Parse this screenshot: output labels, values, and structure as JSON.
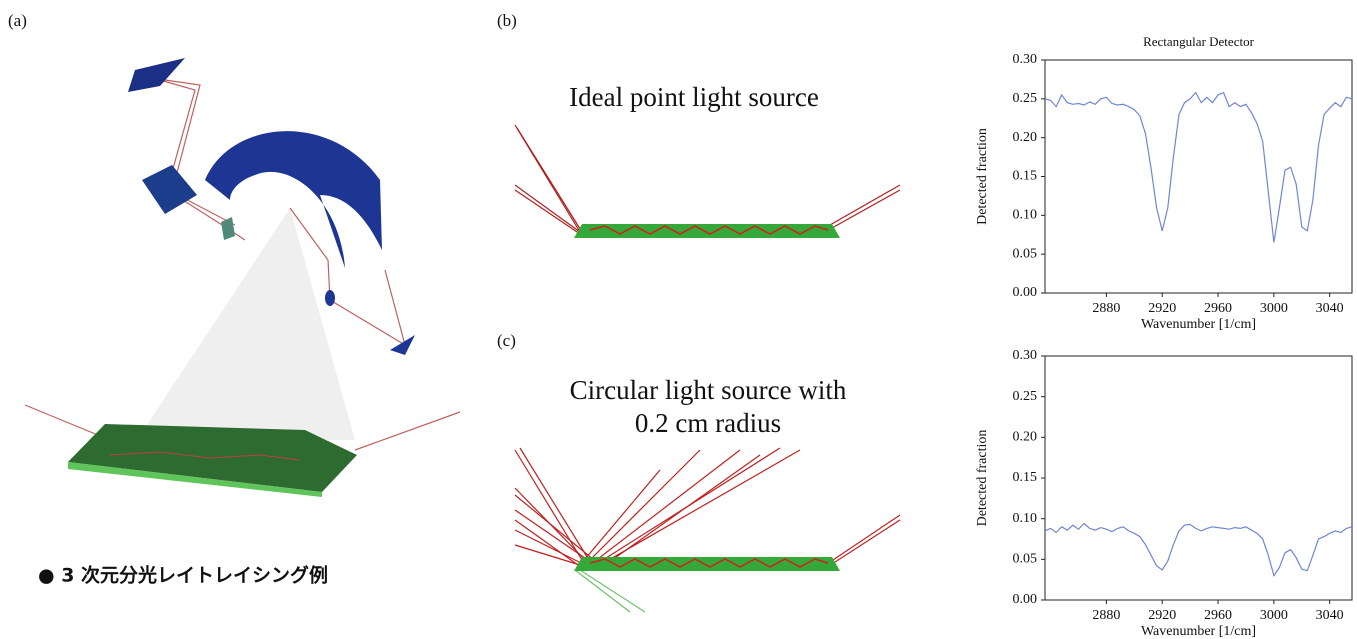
{
  "labels": {
    "a": "(a)",
    "b": "(b)",
    "c": "(c)"
  },
  "caption": "● 3 次元分光レイトレイシング例",
  "panel_b": {
    "title": "Ideal point light source"
  },
  "panel_c": {
    "title_lines": [
      "Circular light source with",
      "0.2 cm radius"
    ]
  },
  "chart_data": [
    {
      "type": "line",
      "title": "Rectangular Detector",
      "x_label": "Wavenumber [1/cm]",
      "y_label": "Detected fraction",
      "xlim": [
        2836,
        3056
      ],
      "ylim": [
        0,
        0.3
      ],
      "xticks": [
        2880,
        2920,
        2960,
        3000,
        3040
      ],
      "yticks": [
        {
          "value": 0,
          "label": "0.00"
        },
        {
          "value": 0.05,
          "label": "0.05"
        },
        {
          "value": 0.1,
          "label": "0.10"
        },
        {
          "value": 0.15,
          "label": "0.15"
        },
        {
          "value": 0.2,
          "label": "0.20"
        },
        {
          "value": 0.25,
          "label": "0.25"
        },
        {
          "value": 0.3,
          "label": "0.30"
        }
      ],
      "x": [
        2836,
        2840,
        2844,
        2848,
        2852,
        2856,
        2860,
        2864,
        2868,
        2872,
        2876,
        2880,
        2884,
        2888,
        2892,
        2896,
        2900,
        2904,
        2908,
        2912,
        2916,
        2920,
        2924,
        2928,
        2932,
        2936,
        2940,
        2944,
        2948,
        2952,
        2956,
        2960,
        2964,
        2968,
        2972,
        2976,
        2980,
        2984,
        2988,
        2992,
        2996,
        3000,
        3004,
        3008,
        3012,
        3016,
        3020,
        3024,
        3028,
        3032,
        3036,
        3040,
        3044,
        3048,
        3052,
        3056
      ],
      "series": [
        {
          "color": "#6f86d6",
          "values": [
            0.25,
            0.248,
            0.24,
            0.255,
            0.245,
            0.243,
            0.244,
            0.242,
            0.246,
            0.243,
            0.25,
            0.252,
            0.244,
            0.242,
            0.243,
            0.24,
            0.236,
            0.228,
            0.205,
            0.16,
            0.11,
            0.08,
            0.11,
            0.175,
            0.23,
            0.245,
            0.25,
            0.258,
            0.245,
            0.252,
            0.245,
            0.255,
            0.258,
            0.24,
            0.245,
            0.24,
            0.243,
            0.232,
            0.218,
            0.195,
            0.13,
            0.065,
            0.11,
            0.158,
            0.162,
            0.14,
            0.085,
            0.08,
            0.12,
            0.19,
            0.23,
            0.238,
            0.245,
            0.24,
            0.252,
            0.25
          ]
        }
      ]
    },
    {
      "type": "line",
      "x_label": "Wavenumber [1/cm]",
      "y_label": "Detected fraction",
      "xlim": [
        2836,
        3056
      ],
      "ylim": [
        0,
        0.3
      ],
      "xticks": [
        2880,
        2920,
        2960,
        3000,
        3040
      ],
      "yticks": [
        {
          "value": 0,
          "label": "0.00"
        },
        {
          "value": 0.05,
          "label": "0.05"
        },
        {
          "value": 0.1,
          "label": "0.10"
        },
        {
          "value": 0.15,
          "label": "0.15"
        },
        {
          "value": 0.2,
          "label": "0.20"
        },
        {
          "value": 0.25,
          "label": "0.25"
        },
        {
          "value": 0.3,
          "label": "0.30"
        }
      ],
      "x": [
        2836,
        2840,
        2844,
        2848,
        2852,
        2856,
        2860,
        2864,
        2868,
        2872,
        2876,
        2880,
        2884,
        2888,
        2892,
        2896,
        2900,
        2904,
        2908,
        2912,
        2916,
        2920,
        2924,
        2928,
        2932,
        2936,
        2940,
        2944,
        2948,
        2952,
        2956,
        2960,
        2964,
        2968,
        2972,
        2976,
        2980,
        2984,
        2988,
        2992,
        2996,
        3000,
        3004,
        3008,
        3012,
        3016,
        3020,
        3024,
        3028,
        3032,
        3036,
        3040,
        3044,
        3048,
        3052,
        3056
      ],
      "series": [
        {
          "color": "#6f86d6",
          "values": [
            0.085,
            0.088,
            0.083,
            0.09,
            0.086,
            0.092,
            0.087,
            0.094,
            0.088,
            0.086,
            0.089,
            0.087,
            0.084,
            0.088,
            0.09,
            0.085,
            0.082,
            0.078,
            0.068,
            0.055,
            0.042,
            0.037,
            0.048,
            0.068,
            0.085,
            0.092,
            0.093,
            0.088,
            0.085,
            0.088,
            0.09,
            0.089,
            0.088,
            0.087,
            0.089,
            0.088,
            0.09,
            0.086,
            0.082,
            0.075,
            0.055,
            0.03,
            0.04,
            0.058,
            0.062,
            0.052,
            0.038,
            0.036,
            0.055,
            0.075,
            0.078,
            0.082,
            0.085,
            0.083,
            0.088,
            0.09
          ]
        }
      ]
    }
  ]
}
